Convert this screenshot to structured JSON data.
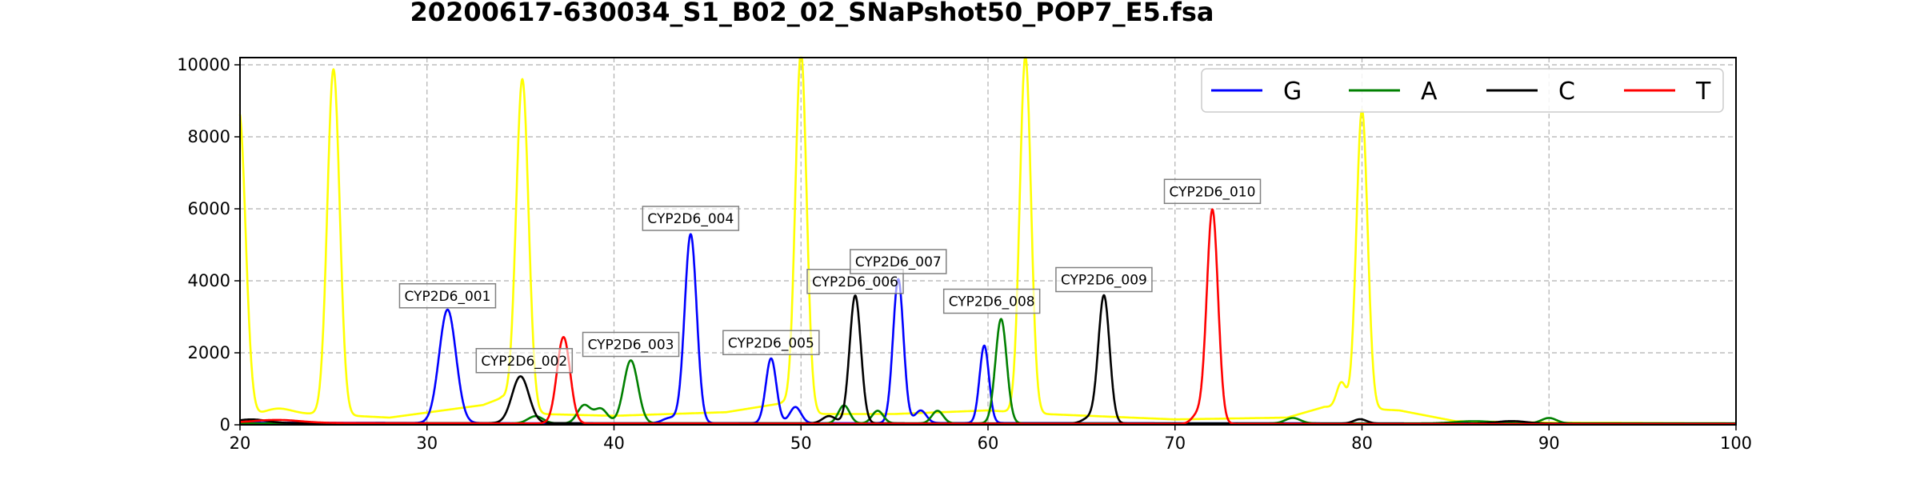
{
  "chart_data": {
    "type": "line",
    "title": "20200617-630034_S1_B02_02_SNaPshot50_POP7_E5.fsa",
    "xlabel": "",
    "ylabel": "",
    "xlim": [
      20,
      100
    ],
    "ylim": [
      0,
      10200
    ],
    "xticks": [
      20,
      30,
      40,
      50,
      60,
      70,
      80,
      90,
      100
    ],
    "yticks": [
      0,
      2000,
      4000,
      6000,
      8000,
      10000
    ],
    "grid": true,
    "legend": {
      "placement": "top-right",
      "ncol": 4
    },
    "series": [
      {
        "name": "G",
        "color": "#0000ff",
        "baseline": [
          [
            20,
            60
          ],
          [
            40,
            40
          ],
          [
            60,
            50
          ],
          [
            80,
            40
          ],
          [
            100,
            30
          ]
        ],
        "peaks": [
          {
            "x": 31.1,
            "height": 3150,
            "width": 0.45
          },
          {
            "x": 44.1,
            "height": 5250,
            "width": 0.32
          },
          {
            "x": 48.4,
            "height": 1800,
            "width": 0.28
          },
          {
            "x": 49.7,
            "height": 450,
            "width": 0.3
          },
          {
            "x": 55.2,
            "height": 4000,
            "width": 0.28
          },
          {
            "x": 56.4,
            "height": 350,
            "width": 0.3
          },
          {
            "x": 59.8,
            "height": 2150,
            "width": 0.25
          },
          {
            "x": 43.0,
            "height": 150,
            "width": 0.4
          }
        ]
      },
      {
        "name": "A",
        "color": "#008000",
        "baseline": [
          [
            20,
            40
          ],
          [
            60,
            40
          ],
          [
            100,
            40
          ]
        ],
        "peaks": [
          {
            "x": 35.8,
            "height": 200,
            "width": 0.4
          },
          {
            "x": 38.4,
            "height": 500,
            "width": 0.35
          },
          {
            "x": 39.3,
            "height": 400,
            "width": 0.35
          },
          {
            "x": 40.9,
            "height": 1750,
            "width": 0.38
          },
          {
            "x": 52.3,
            "height": 500,
            "width": 0.3
          },
          {
            "x": 54.1,
            "height": 350,
            "width": 0.3
          },
          {
            "x": 57.3,
            "height": 350,
            "width": 0.3
          },
          {
            "x": 60.7,
            "height": 2900,
            "width": 0.3
          },
          {
            "x": 76.3,
            "height": 150,
            "width": 0.4
          },
          {
            "x": 90.0,
            "height": 150,
            "width": 0.4
          },
          {
            "x": 86.0,
            "height": 60,
            "width": 1.0
          }
        ]
      },
      {
        "name": "C",
        "color": "#000000",
        "baseline": [
          [
            20,
            50
          ],
          [
            100,
            30
          ]
        ],
        "peaks": [
          {
            "x": 20.6,
            "height": 100,
            "width": 0.8
          },
          {
            "x": 35.0,
            "height": 1300,
            "width": 0.45
          },
          {
            "x": 51.5,
            "height": 200,
            "width": 0.35
          },
          {
            "x": 52.9,
            "height": 3550,
            "width": 0.3
          },
          {
            "x": 65.4,
            "height": 150,
            "width": 0.35
          },
          {
            "x": 66.2,
            "height": 3550,
            "width": 0.3
          },
          {
            "x": 79.9,
            "height": 120,
            "width": 0.35
          },
          {
            "x": 88.0,
            "height": 70,
            "width": 0.8
          }
        ]
      },
      {
        "name": "T",
        "color": "#ff0000",
        "baseline": [
          [
            20,
            60
          ],
          [
            30,
            40
          ],
          [
            60,
            30
          ],
          [
            100,
            20
          ]
        ],
        "peaks": [
          {
            "x": 22.0,
            "height": 80,
            "width": 1.2
          },
          {
            "x": 37.3,
            "height": 2400,
            "width": 0.35
          },
          {
            "x": 71.2,
            "height": 250,
            "width": 0.3
          },
          {
            "x": 72.0,
            "height": 5950,
            "width": 0.3
          }
        ]
      },
      {
        "name": "",
        "color": "#ffff00",
        "baseline": [
          [
            20,
            200
          ],
          [
            24,
            300
          ],
          [
            28,
            200
          ],
          [
            33,
            550
          ],
          [
            34,
            750
          ],
          [
            36,
            300
          ],
          [
            40,
            250
          ],
          [
            46,
            350
          ],
          [
            49,
            600
          ],
          [
            51,
            300
          ],
          [
            55,
            300
          ],
          [
            60,
            400
          ],
          [
            63,
            300
          ],
          [
            70,
            150
          ],
          [
            76,
            200
          ],
          [
            78,
            500
          ],
          [
            82,
            400
          ],
          [
            85,
            100
          ],
          [
            90,
            60
          ],
          [
            100,
            40
          ]
        ],
        "peaks": [
          {
            "x": 19.95,
            "height": 8500,
            "width": 0.35
          },
          {
            "x": 22.0,
            "height": 200,
            "width": 0.8
          },
          {
            "x": 25.0,
            "height": 9600,
            "width": 0.33
          },
          {
            "x": 35.1,
            "height": 9100,
            "width": 0.33
          },
          {
            "x": 50.0,
            "height": 9900,
            "width": 0.3
          },
          {
            "x": 62.0,
            "height": 9900,
            "width": 0.3
          },
          {
            "x": 78.9,
            "height": 700,
            "width": 0.25
          },
          {
            "x": 80.0,
            "height": 8300,
            "width": 0.3
          }
        ]
      }
    ],
    "annotations": [
      {
        "text": "CYP2D6_001",
        "x": 31.1,
        "y": 3250
      },
      {
        "text": "CYP2D6_002",
        "x": 35.2,
        "y": 1450
      },
      {
        "text": "CYP2D6_003",
        "x": 40.9,
        "y": 1900
      },
      {
        "text": "CYP2D6_004",
        "x": 44.1,
        "y": 5400
      },
      {
        "text": "CYP2D6_005",
        "x": 48.4,
        "y": 1950
      },
      {
        "text": "CYP2D6_006",
        "x": 52.9,
        "y": 3650
      },
      {
        "text": "CYP2D6_007",
        "x": 55.2,
        "y": 4200
      },
      {
        "text": "CYP2D6_008",
        "x": 60.2,
        "y": 3100
      },
      {
        "text": "CYP2D6_009",
        "x": 66.2,
        "y": 3700
      },
      {
        "text": "CYP2D6_010",
        "x": 72.0,
        "y": 6150
      }
    ]
  }
}
